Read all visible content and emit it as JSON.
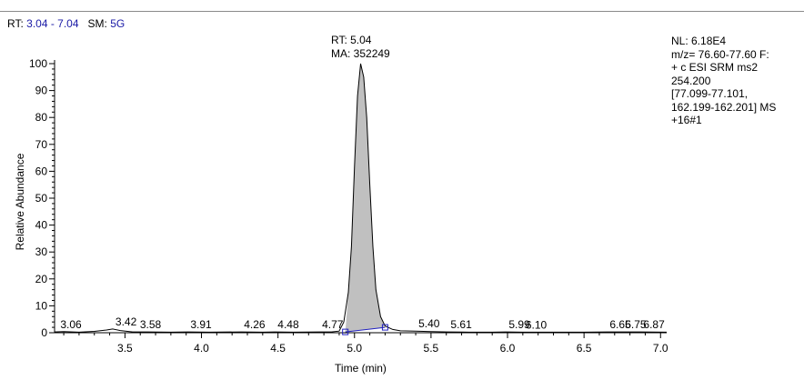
{
  "header": {
    "rt_label": "RT:",
    "rt_range": "3.04 - 7.04",
    "sm_label": "SM:",
    "sm_value": "5G"
  },
  "info_panel": {
    "text": "NL: 6.18E4\nm/z= 76.60-77.60 F:\n+ c ESI SRM ms2\n254.200\n[77.099-77.101,\n162.199-162.201]  MS\n+16#1"
  },
  "peak_annotation": {
    "rt": "RT: 5.04",
    "ma": "MA: 352249"
  },
  "colors": {
    "line": "#000000",
    "fill": "#c0c0c0",
    "baseline": "#2020c0",
    "header_value": "#1a1aa6"
  },
  "chart_data": {
    "type": "line",
    "title": "",
    "xlabel": "Time (min)",
    "ylabel": "Relative Abundance",
    "xlim": [
      3.04,
      7.04
    ],
    "ylim": [
      0,
      100
    ],
    "x_ticks": [
      3.5,
      4.0,
      4.5,
      5.0,
      5.5,
      6.0,
      6.5,
      7.0
    ],
    "x_tick_labels": [
      "3.5",
      "4.0",
      "4.5",
      "5.0",
      "5.5",
      "6.0",
      "6.5",
      "7.0"
    ],
    "y_ticks": [
      0,
      10,
      20,
      30,
      40,
      50,
      60,
      70,
      80,
      90,
      100
    ],
    "y_tick_labels": [
      "0",
      "10",
      "20",
      "30",
      "40",
      "50",
      "60",
      "70",
      "80",
      "90",
      "100"
    ],
    "grid": false,
    "series": [
      {
        "x": [
          3.04,
          3.1,
          3.2,
          3.3,
          3.38,
          3.42,
          3.47,
          3.55,
          3.65,
          3.8,
          3.91,
          4.05,
          4.26,
          4.4,
          4.48,
          4.6,
          4.77,
          4.85,
          4.9,
          4.93,
          4.96,
          4.98,
          5.0,
          5.02,
          5.04,
          5.06,
          5.08,
          5.1,
          5.12,
          5.14,
          5.17,
          5.2,
          5.25,
          5.3,
          5.4,
          5.5,
          5.61,
          5.75,
          5.9,
          5.99,
          6.1,
          6.3,
          6.5,
          6.65,
          6.75,
          6.87,
          7.04
        ],
        "y": [
          0.3,
          0.4,
          0.2,
          0.5,
          1.0,
          1.4,
          0.8,
          0.3,
          0.3,
          0.2,
          0.3,
          0.2,
          0.3,
          0.2,
          0.3,
          0.2,
          0.3,
          0.3,
          0.6,
          4,
          15,
          32,
          62,
          88,
          100,
          95,
          80,
          55,
          32,
          16,
          6,
          2.5,
          1.2,
          0.7,
          0.6,
          0.4,
          0.3,
          0.2,
          0.2,
          0.3,
          0.2,
          0.2,
          0.2,
          0.3,
          0.3,
          0.3,
          0.2
        ]
      }
    ],
    "peak_area": {
      "start": [
        4.94,
        0.3
      ],
      "end": [
        5.2,
        2.0
      ]
    },
    "peak_labels": [
      {
        "x": 3.06,
        "y": 0.3,
        "label": "3.06"
      },
      {
        "x": 3.42,
        "y": 1.4,
        "label": "3.42"
      },
      {
        "x": 3.58,
        "y": 0.3,
        "label": "3.58"
      },
      {
        "x": 3.91,
        "y": 0.3,
        "label": "3.91"
      },
      {
        "x": 4.26,
        "y": 0.3,
        "label": "4.26"
      },
      {
        "x": 4.48,
        "y": 0.3,
        "label": "4.48"
      },
      {
        "x": 4.77,
        "y": 0.3,
        "label": "4.77"
      },
      {
        "x": 5.4,
        "y": 0.6,
        "label": "5.40"
      },
      {
        "x": 5.61,
        "y": 0.3,
        "label": "5.61"
      },
      {
        "x": 5.99,
        "y": 0.3,
        "label": "5.99"
      },
      {
        "x": 6.1,
        "y": 0.2,
        "label": "6.10"
      },
      {
        "x": 6.65,
        "y": 0.3,
        "label": "6.65"
      },
      {
        "x": 6.75,
        "y": 0.3,
        "label": "6.75"
      },
      {
        "x": 6.87,
        "y": 0.3,
        "label": "6.87"
      }
    ]
  }
}
